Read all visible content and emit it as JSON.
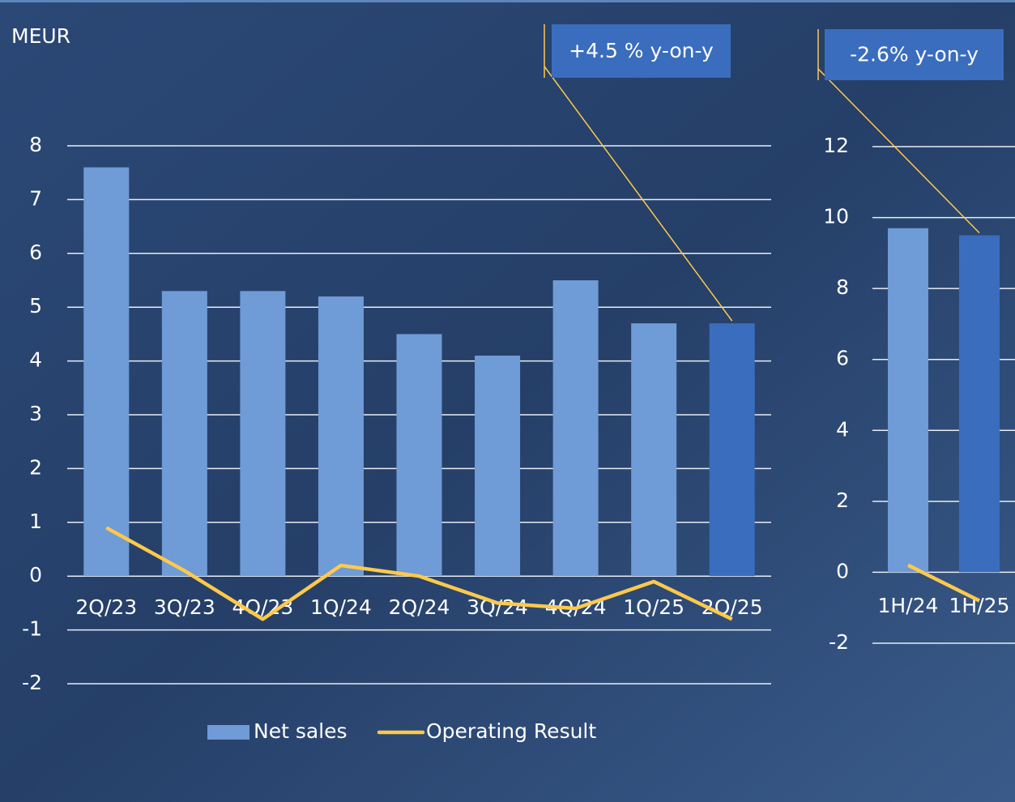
{
  "chart_data": [
    {
      "type": "bar",
      "ylabel": "MEUR",
      "categories": [
        "2Q/23",
        "3Q/23",
        "4Q/23",
        "1Q/24",
        "2Q/24",
        "3Q/24",
        "4Q/24",
        "1Q/25",
        "2Q/25"
      ],
      "series": [
        {
          "name": "Net sales",
          "type": "bar",
          "color": "#6f9bd6",
          "colors": [
            "#6f9bd6",
            "#6f9bd6",
            "#6f9bd6",
            "#6f9bd6",
            "#6f9bd6",
            "#6f9bd6",
            "#6f9bd6",
            "#6f9bd6",
            "#3a6dbd"
          ],
          "values": [
            7.6,
            5.3,
            5.3,
            5.2,
            4.5,
            4.1,
            5.5,
            4.7,
            4.7
          ]
        },
        {
          "name": "Operating Result",
          "type": "line",
          "color": "#ffc94a",
          "values": [
            0.9,
            0.1,
            -0.8,
            0.2,
            0.0,
            -0.5,
            -0.6,
            -0.1,
            -0.8
          ]
        }
      ],
      "ylim": [
        -2,
        8
      ],
      "yticks": [
        -2,
        -1,
        0,
        1,
        2,
        3,
        4,
        5,
        6,
        7,
        8
      ],
      "grid": true,
      "legend": "bottom",
      "annotation": "+4.5 % y-on-y"
    },
    {
      "type": "bar",
      "categories": [
        "1H/24",
        "1H/25"
      ],
      "series": [
        {
          "name": "Net sales",
          "type": "bar",
          "color": "#6f9bd6",
          "colors": [
            "#6f9bd6",
            "#3a6dbd"
          ],
          "values": [
            9.7,
            9.5
          ]
        },
        {
          "name": "Operating Result",
          "type": "line",
          "color": "#ffc94a",
          "values": [
            0.2,
            -0.8
          ]
        }
      ],
      "ylim": [
        -2,
        12
      ],
      "yticks": [
        -2,
        0,
        2,
        4,
        6,
        8,
        10,
        12
      ],
      "grid": true,
      "annotation": "-2.6% y-on-y"
    }
  ]
}
